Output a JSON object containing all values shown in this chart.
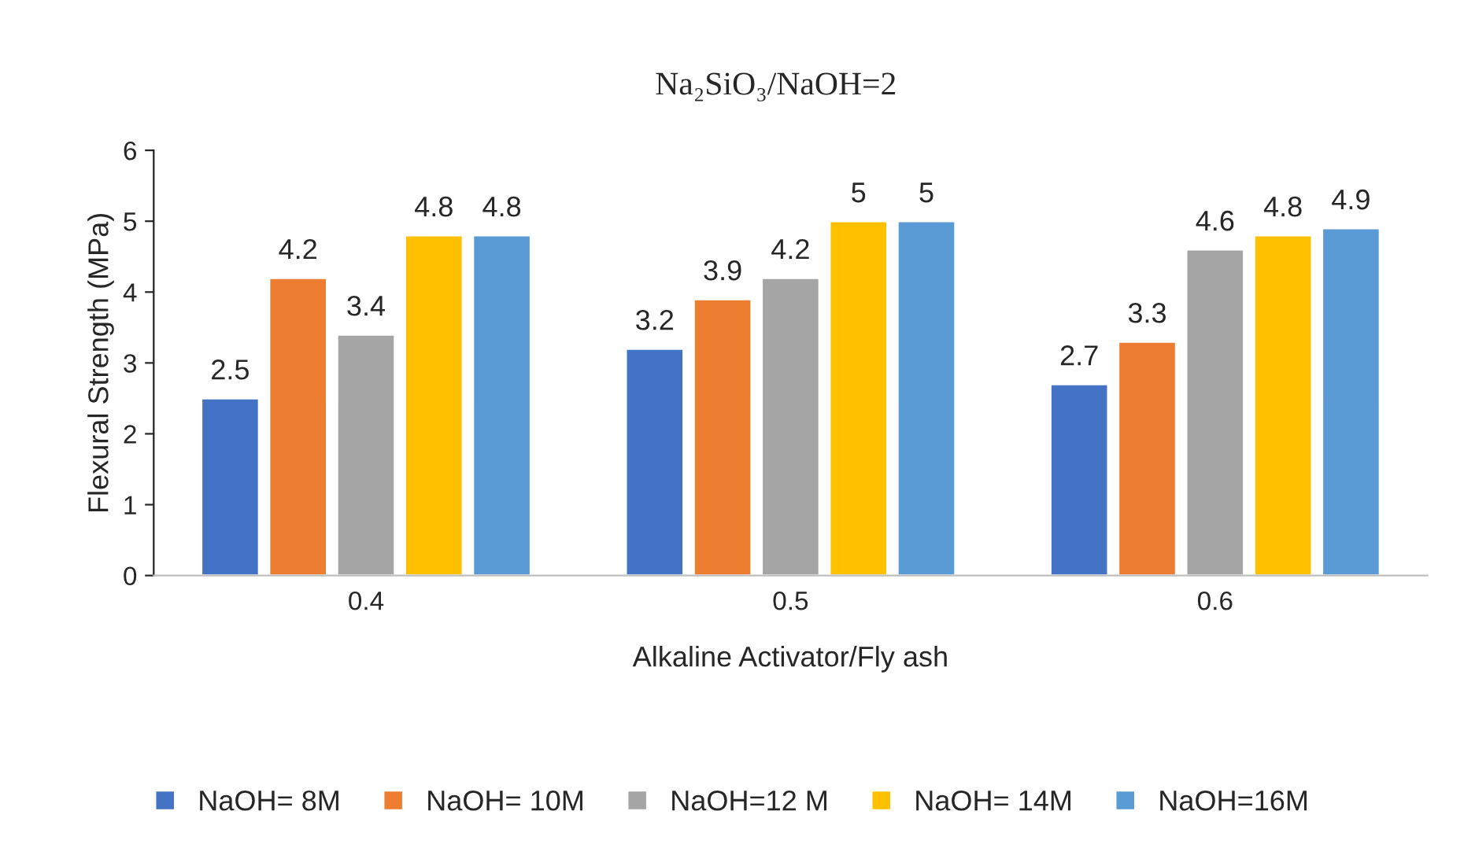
{
  "chart_data": {
    "type": "bar",
    "title": "Na₂SiO₃/NaOH=2",
    "xlabel": "Alkaline Activator/Fly ash",
    "ylabel": "Flexural Strength (MPa)",
    "categories": [
      "0.4",
      "0.5",
      "0.6"
    ],
    "series": [
      {
        "name": "NaOH= 8M",
        "color": "#4472c4",
        "values": [
          2.5,
          3.2,
          2.7
        ]
      },
      {
        "name": "NaOH= 10M",
        "color": "#ed7d31",
        "values": [
          4.2,
          3.9,
          3.3
        ]
      },
      {
        "name": "NaOH=12 M",
        "color": "#a5a5a5",
        "values": [
          3.4,
          4.2,
          4.6
        ]
      },
      {
        "name": "NaOH= 14M",
        "color": "#ffc000",
        "values": [
          4.8,
          5,
          4.8
        ]
      },
      {
        "name": "NaOH=16M",
        "color": "#5b9bd5",
        "values": [
          4.8,
          5,
          4.9
        ]
      }
    ],
    "ylim": [
      0,
      6
    ],
    "yticks": [
      0,
      1,
      2,
      3,
      4,
      5,
      6
    ],
    "grid": false,
    "legend": "bottom",
    "data_labels": true
  }
}
